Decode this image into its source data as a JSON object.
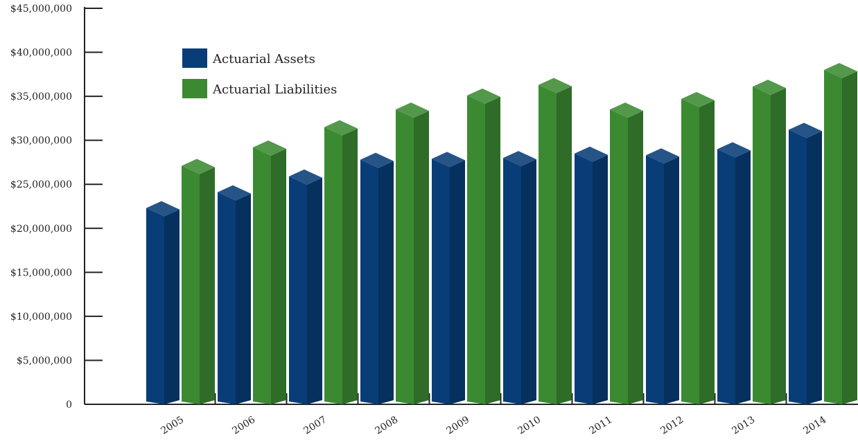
{
  "chart_data": {
    "type": "bar",
    "title": "",
    "xlabel": "",
    "ylabel": "",
    "ylim": [
      0,
      45000000
    ],
    "y_ticks": [
      0,
      5000000,
      10000000,
      15000000,
      20000000,
      25000000,
      30000000,
      35000000,
      40000000,
      45000000
    ],
    "y_tick_labels": [
      "0",
      "$5,000,000",
      "$10,000,000",
      "$15,000,000",
      "$20,000,000",
      "$25,000,000",
      "$30,000,000",
      "$35,000,000",
      "$40,000,000",
      "$45,000,000"
    ],
    "categories": [
      "2005",
      "2006",
      "2007",
      "2008",
      "2009",
      "2010",
      "2011",
      "2012",
      "2013",
      "2014"
    ],
    "series": [
      {
        "name": "Actuarial Assets",
        "color": "#083d77",
        "values": [
          22300000,
          24100000,
          25900000,
          27800000,
          27900000,
          28000000,
          28500000,
          28300000,
          29000000,
          31200000
        ]
      },
      {
        "name": "Actuarial Liabilities",
        "color": "#3b8a32",
        "values": [
          27100000,
          29200000,
          31500000,
          33500000,
          35100000,
          36300000,
          33500000,
          34700000,
          36100000,
          38000000
        ]
      }
    ],
    "legend_position": "top-left",
    "grid": false,
    "style": "3d-bars"
  }
}
